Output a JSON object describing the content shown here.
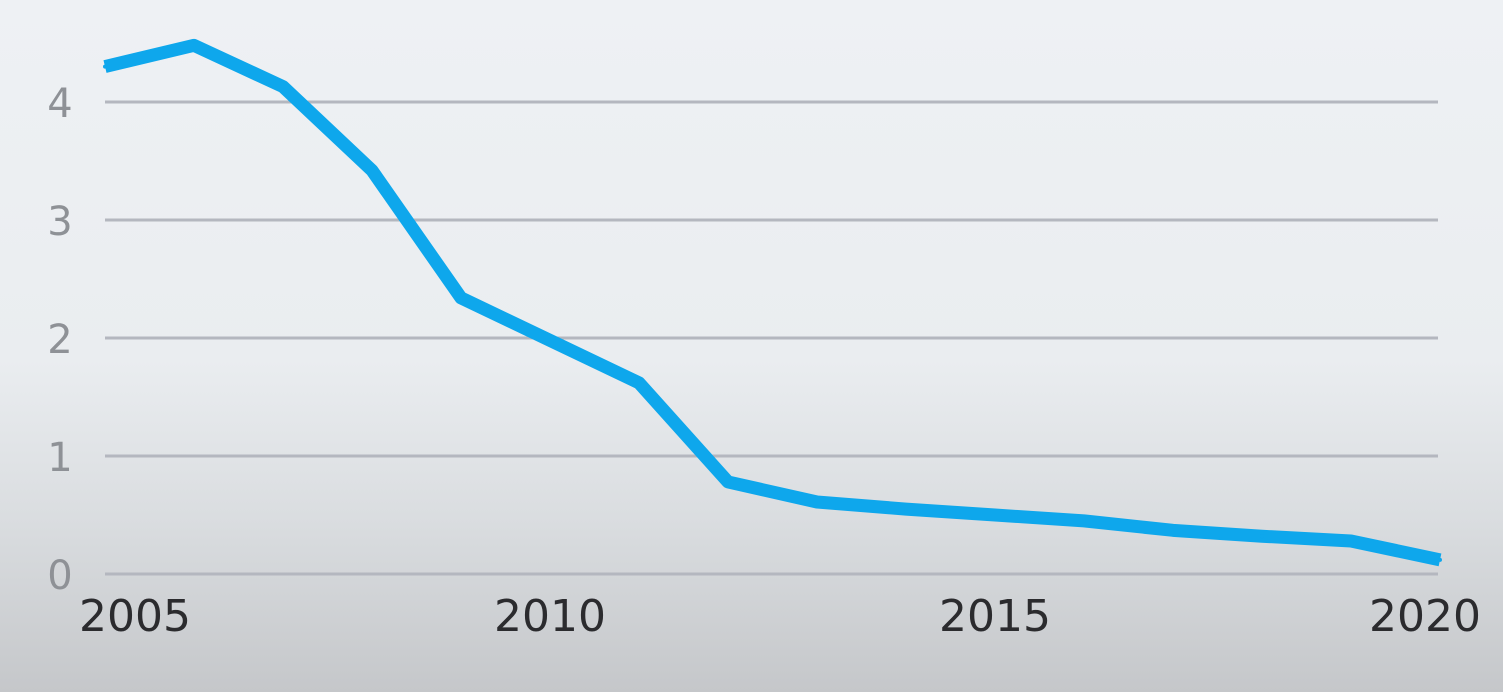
{
  "chart_data": {
    "type": "line",
    "title": "",
    "xlabel": "",
    "ylabel": "",
    "x": [
      2005,
      2006,
      2007,
      2008,
      2009,
      2010,
      2011,
      2012,
      2013,
      2014,
      2015,
      2016,
      2017,
      2018,
      2019,
      2020
    ],
    "series": [
      {
        "values": [
          4.3,
          4.48,
          4.13,
          3.42,
          2.34,
          1.98,
          1.62,
          0.78,
          0.61,
          0.55,
          0.5,
          0.45,
          0.37,
          0.32,
          0.28,
          0.12
        ]
      }
    ],
    "xlim": [
      2005,
      2020
    ],
    "ylim": [
      0,
      4.6
    ],
    "yticks": [
      "0",
      "1",
      "2",
      "3",
      "4"
    ],
    "xticks": [
      "2005",
      "2010",
      "2015",
      "2020"
    ],
    "grid": true,
    "legend": "none",
    "colors": {
      "series": "#0ea7ec",
      "grid": "#b4b7bf"
    }
  }
}
